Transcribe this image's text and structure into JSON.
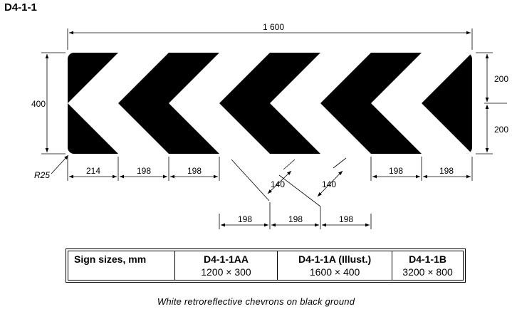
{
  "title": "D4-1-1",
  "dimensions": {
    "overall_width": "1 600",
    "overall_height": "400",
    "half_height_top": "200",
    "half_height_bottom": "200",
    "corner_radius": "R25",
    "bottom_left": [
      "214",
      "198",
      "198"
    ],
    "bottom_right": [
      "198",
      "198"
    ],
    "stroke_width_1": "140",
    "stroke_width_2": "140",
    "bottom_middle": [
      "198",
      "198",
      "198"
    ]
  },
  "sizes_table": {
    "header": "Sign sizes, mm",
    "columns": [
      {
        "code": "D4-1-1AA",
        "size": "1200 × 300"
      },
      {
        "code": "D4-1-1A (Illust.)",
        "size": "1600 × 400"
      },
      {
        "code": "D4-1-1B",
        "size": "3200 × 800"
      }
    ]
  },
  "caption": "White retroreflective chevrons on black ground",
  "colors": {
    "ground": "#000000",
    "chevron": "#ffffff"
  }
}
